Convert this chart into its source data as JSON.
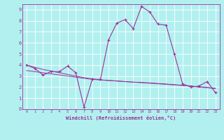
{
  "x": [
    0,
    1,
    2,
    3,
    4,
    5,
    6,
    7,
    8,
    9,
    10,
    11,
    12,
    13,
    14,
    15,
    16,
    17,
    18,
    19,
    20,
    21,
    22,
    23
  ],
  "y_main": [
    4.0,
    3.7,
    3.1,
    3.4,
    3.4,
    3.9,
    3.3,
    0.2,
    2.7,
    2.7,
    6.3,
    7.8,
    8.1,
    7.3,
    9.3,
    8.8,
    7.7,
    7.6,
    5.0,
    2.3,
    2.0,
    2.1,
    2.5,
    1.5
  ],
  "y_trend1": [
    4.0,
    3.8,
    3.6,
    3.45,
    3.3,
    3.15,
    3.0,
    2.85,
    2.75,
    2.65,
    2.6,
    2.55,
    2.5,
    2.45,
    2.4,
    2.35,
    2.3,
    2.25,
    2.2,
    2.15,
    2.1,
    2.0,
    1.95,
    1.85
  ],
  "y_trend2": [
    3.5,
    3.4,
    3.3,
    3.2,
    3.1,
    3.0,
    2.9,
    2.8,
    2.7,
    2.65,
    2.6,
    2.55,
    2.5,
    2.45,
    2.42,
    2.38,
    2.33,
    2.28,
    2.22,
    2.16,
    2.1,
    2.03,
    1.97,
    1.9
  ],
  "color": "#993399",
  "bg_color": "#b2f0f0",
  "xlim": [
    -0.5,
    23.5
  ],
  "ylim": [
    0,
    9.5
  ],
  "xlabel": "Windchill (Refroidissement éolien,°C)",
  "ylabel_ticks": [
    0,
    1,
    2,
    3,
    4,
    5,
    6,
    7,
    8,
    9
  ],
  "xlabel_ticks": [
    0,
    1,
    2,
    3,
    4,
    5,
    6,
    7,
    8,
    9,
    10,
    11,
    12,
    13,
    14,
    15,
    16,
    17,
    18,
    19,
    20,
    21,
    22,
    23
  ]
}
